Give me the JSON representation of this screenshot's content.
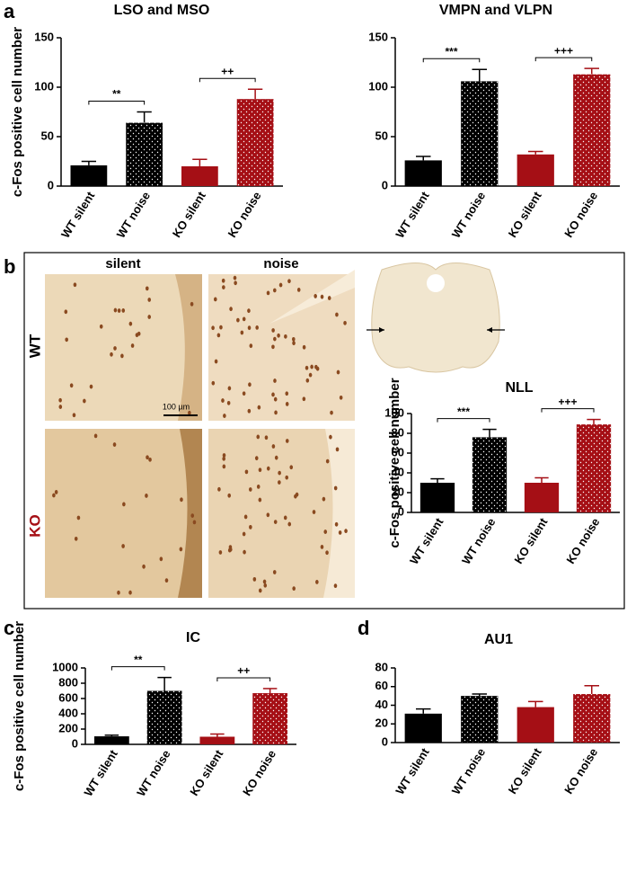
{
  "panel_labels": [
    "a",
    "b",
    "c",
    "d"
  ],
  "micrographs": {
    "columns": [
      "silent",
      "noise"
    ],
    "rows": [
      "WT",
      "KO"
    ],
    "scale_bar": "100 µm"
  },
  "chart_data": [
    {
      "type": "bar",
      "title": "LSO and MSO",
      "y_label": "c-Fos positive cell number",
      "categories": [
        "WT silent",
        "WT noise",
        "KO silent",
        "KO noise"
      ],
      "values": [
        21,
        64,
        20,
        88
      ],
      "errors": [
        4,
        11,
        7,
        10
      ],
      "colors": [
        "#000000",
        "#000000",
        "#a50f15",
        "#a50f15"
      ],
      "dotted": [
        false,
        true,
        false,
        true
      ],
      "annotations": [
        "**",
        "++"
      ],
      "ylim": [
        0,
        150
      ],
      "yticks": [
        0,
        50,
        100,
        150
      ]
    },
    {
      "type": "bar",
      "title": "VMPN and VLPN",
      "categories": [
        "WT silent",
        "WT noise",
        "KO silent",
        "KO noise"
      ],
      "values": [
        26,
        106,
        32,
        113
      ],
      "errors": [
        4,
        12,
        3,
        6
      ],
      "colors": [
        "#000000",
        "#000000",
        "#a50f15",
        "#a50f15"
      ],
      "dotted": [
        false,
        true,
        false,
        true
      ],
      "annotations": [
        "***",
        "+++"
      ],
      "ylim": [
        0,
        150
      ],
      "yticks": [
        0,
        50,
        100,
        150
      ]
    },
    {
      "type": "bar",
      "title": "NLL",
      "y_label": "c-Fos positive cell number",
      "categories": [
        "WT silent",
        "WT noise",
        "KO silent",
        "KO noise"
      ],
      "values": [
        30,
        76,
        30,
        89
      ],
      "errors": [
        4,
        8,
        5,
        5
      ],
      "colors": [
        "#000000",
        "#000000",
        "#a50f15",
        "#a50f15"
      ],
      "dotted": [
        false,
        true,
        false,
        true
      ],
      "annotations": [
        "***",
        "+++"
      ],
      "ylim": [
        0,
        100
      ],
      "yticks": [
        0,
        20,
        40,
        60,
        80,
        100
      ]
    },
    {
      "type": "bar",
      "title": "IC",
      "y_label": "c-Fos positive cell number",
      "categories": [
        "WT silent",
        "WT noise",
        "KO silent",
        "KO noise"
      ],
      "values": [
        105,
        700,
        100,
        670
      ],
      "errors": [
        15,
        175,
        35,
        60
      ],
      "colors": [
        "#000000",
        "#000000",
        "#a50f15",
        "#a50f15"
      ],
      "dotted": [
        false,
        true,
        false,
        true
      ],
      "annotations": [
        "**",
        "++"
      ],
      "ylim": [
        0,
        1000
      ],
      "yticks": [
        0,
        200,
        400,
        600,
        800,
        1000
      ]
    },
    {
      "type": "bar",
      "title": "AU1",
      "categories": [
        "WT silent",
        "WT noise",
        "KO silent",
        "KO noise"
      ],
      "values": [
        31,
        50,
        38,
        52
      ],
      "errors": [
        5,
        2,
        6,
        9
      ],
      "colors": [
        "#000000",
        "#000000",
        "#a50f15",
        "#a50f15"
      ],
      "dotted": [
        false,
        true,
        false,
        true
      ],
      "ylim": [
        0,
        80
      ],
      "yticks": [
        0,
        20,
        40,
        60,
        80
      ]
    }
  ]
}
